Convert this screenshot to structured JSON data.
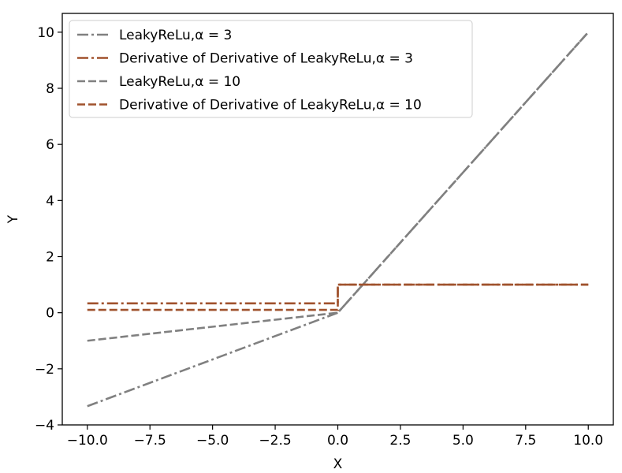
{
  "chart_data": {
    "type": "line",
    "title": "",
    "xlabel": "X",
    "ylabel": "Y",
    "xlim": [
      -11,
      11
    ],
    "ylim": [
      -4,
      10.67
    ],
    "x_ticks": [
      -10.0,
      -7.5,
      -5.0,
      -2.5,
      0.0,
      2.5,
      5.0,
      7.5,
      10.0
    ],
    "x_tick_labels": [
      "−10.0",
      "−7.5",
      "−5.0",
      "−2.5",
      "0.0",
      "2.5",
      "5.0",
      "7.5",
      "10.0"
    ],
    "y_ticks": [
      -4,
      -2,
      0,
      2,
      4,
      6,
      8,
      10
    ],
    "y_tick_labels": [
      "−4",
      "−2",
      "0",
      "2",
      "4",
      "6",
      "8",
      "10"
    ],
    "grid": false,
    "legend_position": "top-left",
    "series": [
      {
        "name": "LeakyReLu,",
        "alpha_label": "α = 3",
        "color": "#808080",
        "style": "dashdot",
        "x": [
          -10,
          0,
          10
        ],
        "y": [
          -3.333,
          0,
          10
        ]
      },
      {
        "name": "Derivative of Derivative of LeakyReLu,",
        "alpha_label": "α = 3",
        "color": "#a0522d",
        "style": "dashdot",
        "x": [
          -10,
          0,
          0,
          10
        ],
        "y": [
          0.333,
          0.333,
          1,
          1
        ]
      },
      {
        "name": "LeakyReLu,",
        "alpha_label": "α = 10",
        "color": "#808080",
        "style": "dashed",
        "x": [
          -10,
          0,
          10
        ],
        "y": [
          -1,
          0,
          10
        ]
      },
      {
        "name": "Derivative of Derivative of LeakyReLu,",
        "alpha_label": "α = 10",
        "color": "#a0522d",
        "style": "dashed",
        "x": [
          -10,
          0,
          0,
          10
        ],
        "y": [
          0.1,
          0.1,
          1,
          1
        ]
      }
    ]
  }
}
